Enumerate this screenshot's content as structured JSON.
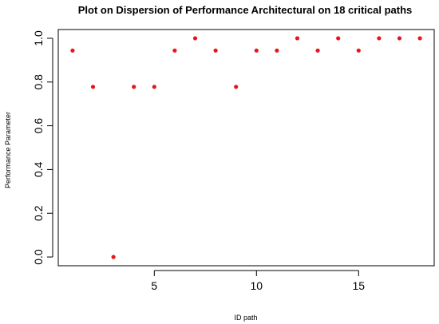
{
  "chart_data": {
    "type": "scatter",
    "title": "Plot on Dispersion of Performance Architectural on 18 critical paths",
    "xlabel": "ID path",
    "ylabel": "Performance Parameter",
    "xlim": [
      0.3,
      18.7
    ],
    "ylim": [
      -0.04,
      1.04
    ],
    "x_ticks": [
      5,
      10,
      15
    ],
    "y_ticks": [
      0.0,
      0.2,
      0.4,
      0.6,
      0.8,
      1.0
    ],
    "x_tick_labels": [
      "5",
      "10",
      "15"
    ],
    "y_tick_labels": [
      "0.0",
      "0.2",
      "0.4",
      "0.6",
      "0.8",
      "1.0"
    ],
    "point_color": "#e8161b",
    "grid": false,
    "legend": "none",
    "series": [
      {
        "x": [
          1,
          2,
          3,
          4,
          5,
          6,
          7,
          8,
          9,
          10,
          11,
          12,
          13,
          14,
          15,
          16,
          17,
          18
        ],
        "y": [
          0.944,
          0.778,
          0.0,
          0.778,
          0.778,
          0.944,
          1.0,
          0.944,
          0.778,
          0.944,
          0.944,
          1.0,
          0.944,
          1.0,
          0.944,
          1.0,
          1.0,
          1.0
        ]
      }
    ]
  }
}
